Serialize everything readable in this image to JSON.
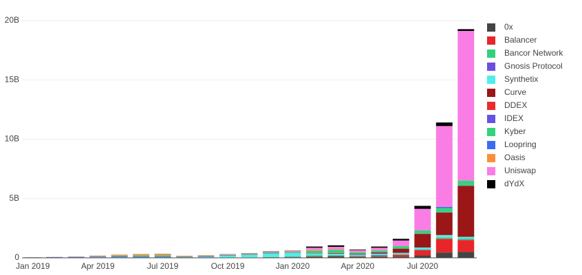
{
  "chart_data": {
    "type": "bar",
    "stacked": true,
    "x": [
      "2019-01",
      "2019-02",
      "2019-03",
      "2019-04",
      "2019-05",
      "2019-06",
      "2019-07",
      "2019-08",
      "2019-09",
      "2019-10",
      "2019-11",
      "2019-12",
      "2020-01",
      "2020-02",
      "2020-03",
      "2020-04",
      "2020-05",
      "2020-06",
      "2020-07",
      "2020-08",
      "2020-09"
    ],
    "xticks": [
      {
        "value": "2019-01",
        "label": "Jan 2019"
      },
      {
        "value": "2019-04",
        "label": "Apr 2019"
      },
      {
        "value": "2019-07",
        "label": "Jul 2019"
      },
      {
        "value": "2019-10",
        "label": "Oct 2019"
      },
      {
        "value": "2020-01",
        "label": "Jan 2020"
      },
      {
        "value": "2020-04",
        "label": "Apr 2020"
      },
      {
        "value": "2020-07",
        "label": "Jul 2020"
      }
    ],
    "ylim": [
      0,
      20
    ],
    "yticks": [
      0,
      {
        "value": 5,
        "label": "5B"
      },
      {
        "value": 10,
        "label": "10B"
      },
      {
        "value": 15,
        "label": "15B"
      },
      {
        "value": 20,
        "label": "20B"
      }
    ],
    "grid": true,
    "legend": "right",
    "series": [
      {
        "name": "0x",
        "color": "#444444",
        "values": [
          0.01,
          0.01,
          0.01,
          0.02,
          0.02,
          0.03,
          0.03,
          0.02,
          0.02,
          0.02,
          0.02,
          0.03,
          0.05,
          0.1,
          0.12,
          0.08,
          0.1,
          0.1,
          0.2,
          0.45,
          0.5
        ]
      },
      {
        "name": "Balancer",
        "color": "#e8262a",
        "values": [
          0,
          0,
          0,
          0,
          0,
          0,
          0,
          0,
          0,
          0,
          0,
          0,
          0,
          0.02,
          0.03,
          0.03,
          0.05,
          0.15,
          0.45,
          1.15,
          1.0
        ]
      },
      {
        "name": "Bancor Network",
        "color": "#33d27a",
        "values": [
          0.01,
          0.01,
          0.01,
          0.02,
          0.03,
          0.03,
          0.03,
          0.01,
          0.02,
          0.02,
          0.02,
          0.03,
          0.04,
          0.08,
          0.07,
          0.05,
          0.05,
          0.05,
          0.05,
          0.1,
          0.1
        ]
      },
      {
        "name": "Gnosis Protocol",
        "color": "#6b4fe0",
        "values": [
          0,
          0,
          0,
          0,
          0,
          0,
          0,
          0,
          0,
          0,
          0,
          0.01,
          0.02,
          0.02,
          0.02,
          0.03,
          0.05,
          0.02,
          0.02,
          0.02,
          0.02
        ]
      },
      {
        "name": "Synthetix",
        "color": "#53ecec",
        "values": [
          0,
          0,
          0,
          0,
          0,
          0,
          0,
          0,
          0.02,
          0.15,
          0.2,
          0.3,
          0.3,
          0.12,
          0.1,
          0.08,
          0.1,
          0.1,
          0.15,
          0.2,
          0.15
        ]
      },
      {
        "name": "Curve",
        "color": "#9b1616",
        "values": [
          0,
          0,
          0,
          0,
          0,
          0,
          0,
          0,
          0,
          0,
          0,
          0,
          0,
          0.02,
          0.05,
          0.05,
          0.1,
          0.35,
          1.15,
          1.9,
          4.3
        ]
      },
      {
        "name": "DDEX",
        "color": "#e82d2d",
        "values": [
          0.01,
          0.01,
          0.01,
          0.01,
          0.01,
          0.01,
          0.01,
          0.01,
          0.01,
          0.01,
          0.01,
          0.01,
          0.01,
          0.01,
          0.01,
          0.01,
          0,
          0,
          0,
          0,
          0
        ]
      },
      {
        "name": "IDEX",
        "color": "#6553e6",
        "values": [
          0.02,
          0.03,
          0.05,
          0.05,
          0.06,
          0.06,
          0.06,
          0.04,
          0.05,
          0.04,
          0.03,
          0.03,
          0.02,
          0.02,
          0.02,
          0.01,
          0.01,
          0.01,
          0.02,
          0.02,
          0.02
        ]
      },
      {
        "name": "Kyber",
        "color": "#34d37c",
        "values": [
          0.01,
          0.01,
          0.02,
          0.03,
          0.05,
          0.07,
          0.07,
          0.03,
          0.04,
          0.03,
          0.04,
          0.05,
          0.05,
          0.2,
          0.25,
          0.12,
          0.15,
          0.2,
          0.25,
          0.35,
          0.4
        ]
      },
      {
        "name": "Loopring",
        "color": "#3b6cf4",
        "values": [
          0,
          0,
          0,
          0,
          0,
          0,
          0,
          0,
          0,
          0,
          0,
          0,
          0.01,
          0.01,
          0.01,
          0.01,
          0.01,
          0.01,
          0.02,
          0.1,
          0.02
        ]
      },
      {
        "name": "Oasis",
        "color": "#fd8d3c",
        "values": [
          0,
          0.01,
          0.01,
          0.04,
          0.08,
          0.1,
          0.1,
          0.04,
          0.04,
          0.03,
          0.03,
          0.03,
          0.05,
          0.08,
          0.05,
          0.03,
          0.03,
          0.02,
          0.02,
          0.02,
          0.02
        ]
      },
      {
        "name": "Uniswap",
        "color": "#f97de5",
        "values": [
          0,
          0,
          0,
          0,
          0,
          0,
          0,
          0,
          0,
          0,
          0.01,
          0.02,
          0.03,
          0.17,
          0.2,
          0.15,
          0.2,
          0.45,
          1.8,
          6.8,
          12.6
        ]
      },
      {
        "name": "dYdX",
        "color": "#000000",
        "values": [
          0,
          0,
          0,
          0.01,
          0.01,
          0.01,
          0.02,
          0.01,
          0.01,
          0.01,
          0.02,
          0.03,
          0.02,
          0.1,
          0.12,
          0.05,
          0.1,
          0.14,
          0.25,
          0.3,
          0.15
        ]
      }
    ]
  }
}
